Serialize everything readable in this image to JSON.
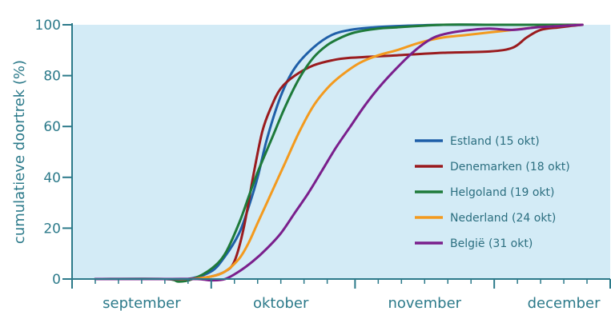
{
  "chart_data": {
    "type": "line",
    "ylabel": "cumulatieve doortrek (%)",
    "ylim": [
      0,
      100
    ],
    "yticks": [
      0,
      20,
      40,
      60,
      80,
      100
    ],
    "xlim": [
      0,
      116
    ],
    "month_labels": [
      {
        "label": "september",
        "day": 15
      },
      {
        "label": "oktober",
        "day": 45
      },
      {
        "label": "november",
        "day": 76
      },
      {
        "label": "december",
        "day": 106
      }
    ],
    "month_boundaries": [
      0,
      30,
      61,
      91,
      116
    ],
    "minor_ticks": [
      5,
      10,
      15,
      20,
      25,
      35,
      40,
      45,
      50,
      55,
      66,
      71,
      76,
      81,
      86,
      96,
      101,
      106,
      111
    ],
    "grid": false,
    "legend_position": "right-center",
    "colors": {
      "plot_background": "#d3ebf6",
      "axis": "#2c7a8a",
      "text": "#2c7a8a"
    },
    "series": [
      {
        "name": "Estland (15 okt)",
        "color": "#1f5fa8",
        "x": [
          5,
          20,
          25,
          30,
          33,
          36,
          38,
          40,
          42,
          45,
          48,
          52,
          56,
          60,
          65,
          70,
          80,
          90,
          100,
          110
        ],
        "y": [
          0,
          0,
          0,
          3,
          9,
          18,
          28,
          40,
          55,
          72,
          83,
          91,
          96,
          98,
          99,
          99.5,
          100,
          100,
          100,
          100
        ]
      },
      {
        "name": "Denemarken (18 okt)",
        "color": "#9a1b1e",
        "x": [
          5,
          20,
          25,
          30,
          33,
          35,
          37,
          39,
          41,
          43,
          45,
          48,
          52,
          56,
          60,
          70,
          80,
          90,
          95,
          98,
          101,
          105,
          110
        ],
        "y": [
          0,
          0,
          0,
          1,
          3,
          7,
          20,
          40,
          58,
          68,
          75,
          80,
          84,
          86,
          87,
          88,
          89,
          89.5,
          91,
          95,
          98,
          99,
          100
        ]
      },
      {
        "name": "Helgoland (19 okt)",
        "color": "#1e7a3a",
        "x": [
          5,
          20,
          23,
          26,
          30,
          33,
          36,
          38,
          40,
          43,
          46,
          49,
          52,
          55,
          58,
          61,
          66,
          70,
          80,
          90,
          100,
          110
        ],
        "y": [
          0,
          0,
          -1,
          0,
          4,
          10,
          22,
          32,
          42,
          55,
          68,
          79,
          87,
          92,
          95,
          97,
          98.5,
          99,
          100,
          100,
          100,
          100
        ]
      },
      {
        "name": "Nederland (24 okt)",
        "color": "#f39a1e",
        "x": [
          5,
          20,
          25,
          30,
          33,
          36,
          38,
          40,
          43,
          46,
          49,
          52,
          55,
          58,
          62,
          66,
          70,
          75,
          80,
          85,
          90,
          95,
          100,
          105,
          110
        ],
        "y": [
          0,
          0,
          0,
          1,
          3,
          8,
          14,
          22,
          34,
          46,
          58,
          68,
          75,
          80,
          85,
          88,
          90,
          93,
          95,
          96,
          97,
          98,
          99,
          99.5,
          100
        ]
      },
      {
        "name": "België (31 okt)",
        "color": "#7a1f8c",
        "x": [
          5,
          20,
          27,
          30,
          33,
          36,
          39,
          42,
          45,
          48,
          51,
          54,
          57,
          60,
          63,
          66,
          70,
          74,
          78,
          82,
          86,
          90,
          95,
          100,
          105,
          110
        ],
        "y": [
          0,
          0,
          0,
          -0.5,
          0,
          3,
          7,
          12,
          18,
          26,
          34,
          43,
          52,
          60,
          68,
          75,
          83,
          90,
          95,
          97,
          98,
          98.5,
          98,
          99,
          99.5,
          100
        ]
      }
    ]
  }
}
